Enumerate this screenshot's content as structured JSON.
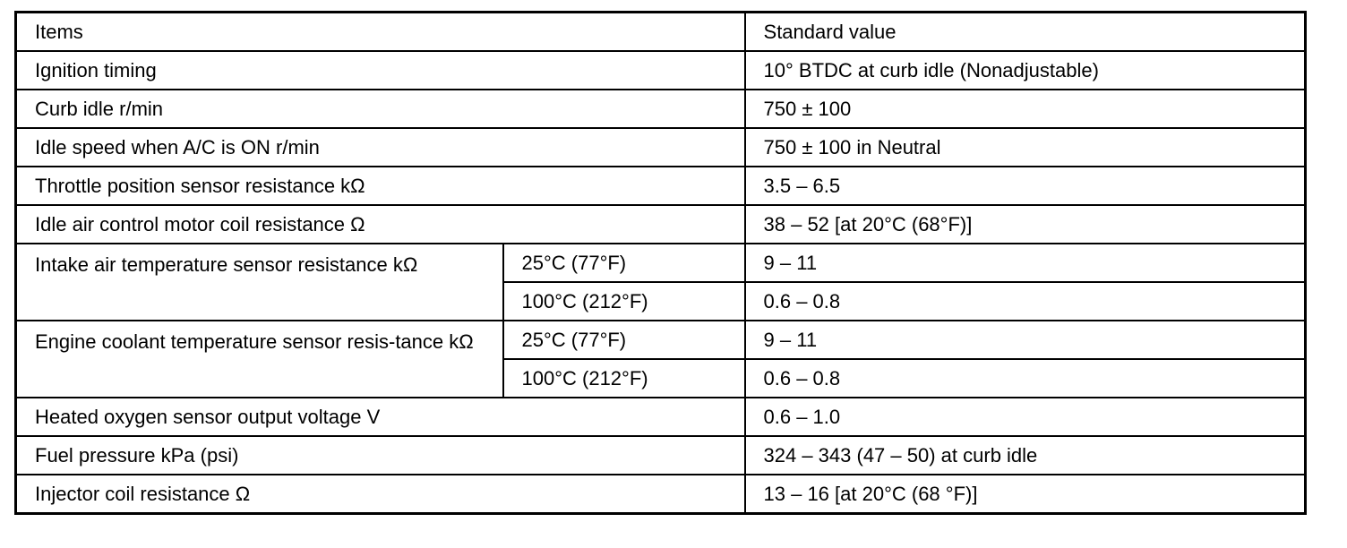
{
  "table": {
    "headers": {
      "items": "Items",
      "standard_value": "Standard value"
    },
    "simple_rows_top": [
      {
        "item": "Ignition timing",
        "value": "10° BTDC at curb idle (Nonadjustable)"
      },
      {
        "item": "Curb idle r/min",
        "value": "750 ± 100"
      },
      {
        "item": "Idle speed when A/C is ON r/min",
        "value": "750 ± 100 in Neutral"
      },
      {
        "item": "Throttle position sensor resistance kΩ",
        "value": "3.5 – 6.5"
      },
      {
        "item": "Idle air control motor coil resistance Ω",
        "value": "38 – 52 [at 20°C (68°F)]"
      }
    ],
    "split_rows": [
      {
        "item": "Intake air temperature sensor resistance kΩ",
        "conditions": [
          {
            "condition": "25°C (77°F)",
            "value": "9 – 11"
          },
          {
            "condition": "100°C (212°F)",
            "value": "0.6 – 0.8"
          }
        ]
      },
      {
        "item": "Engine coolant temperature sensor resis-tance kΩ",
        "conditions": [
          {
            "condition": "25°C (77°F)",
            "value": "9 – 11"
          },
          {
            "condition": "100°C (212°F)",
            "value": "0.6 – 0.8"
          }
        ]
      }
    ],
    "simple_rows_bottom": [
      {
        "item": "Heated oxygen sensor output voltage V",
        "value": "0.6 – 1.0"
      },
      {
        "item": "Fuel pressure kPa (psi)",
        "value": "324 – 343 (47 – 50) at curb idle"
      },
      {
        "item": "Injector coil resistance Ω",
        "value": "13 – 16 [at 20°C (68 °F)]"
      }
    ]
  }
}
